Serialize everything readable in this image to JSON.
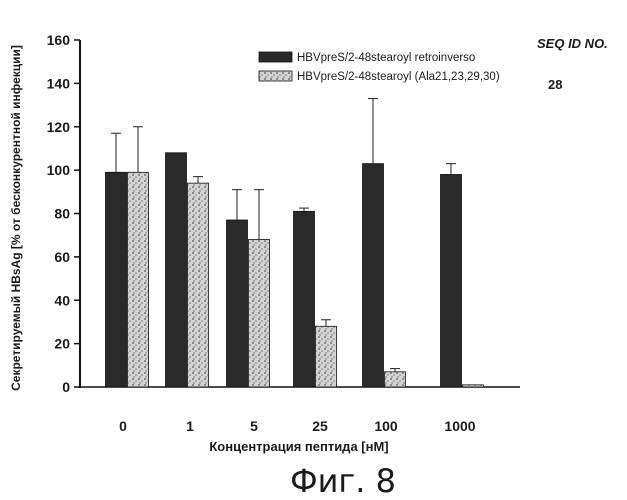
{
  "chart_data": {
    "type": "bar",
    "categories": [
      "0",
      "1",
      "5",
      "25",
      "100",
      "1000"
    ],
    "series": [
      {
        "name": "HBVpreS/2-48stearoyl retroinverso",
        "values": [
          99,
          108,
          77,
          81,
          103,
          98
        ],
        "errors": [
          18,
          0,
          14,
          1.5,
          30,
          5
        ],
        "color": "#2a2a2a"
      },
      {
        "name": "HBVpreS/2-48stearoyl (Ala21,23,29,30)",
        "values": [
          99,
          94,
          68,
          28,
          7,
          0
        ],
        "errors": [
          21,
          3,
          23,
          3,
          1.5,
          0
        ],
        "color": "#bcbcbc"
      }
    ],
    "xlabel": "Концентрация пептида [нМ]",
    "ylabel": "Секретируемый HBsAg [% от бесконкурентной инфекции]",
    "ylim": [
      0,
      160
    ],
    "yticks": [
      "0",
      "20",
      "40",
      "60",
      "80",
      "100",
      "120",
      "140",
      "160"
    ],
    "grid": false,
    "legend_position": "top-right"
  },
  "annotations": {
    "seq_header": "SEQ ID NO.",
    "seq_number": "28"
  },
  "caption": "Фиг. 8"
}
